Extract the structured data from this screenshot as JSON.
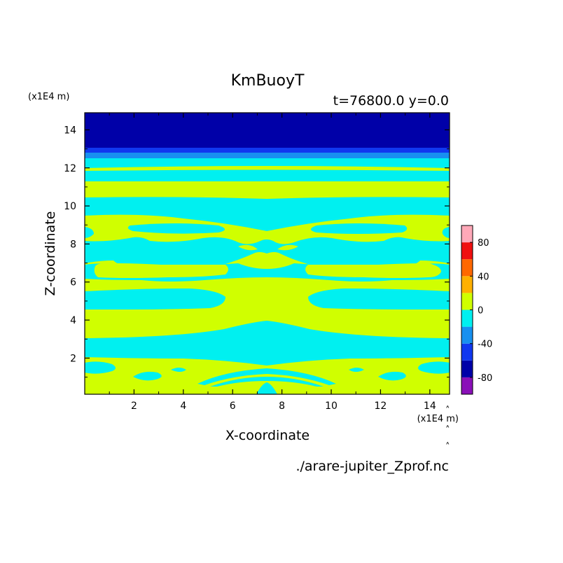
{
  "chart_data": {
    "type": "heatmap",
    "title": "KmBuoyT",
    "subtitle": "t=76800.0 y=0.0",
    "xlabel": "X-coordinate",
    "ylabel": "Z-coordinate",
    "x_unit": "(x1E4 m)",
    "y_unit": "(x1E4 m)",
    "xlim": [
      0,
      14.8
    ],
    "ylim": [
      0.1,
      14.9
    ],
    "x_ticks": [
      2,
      4,
      6,
      8,
      10,
      12,
      14
    ],
    "y_ticks": [
      2,
      4,
      6,
      8,
      10,
      12,
      14
    ],
    "colorbar": {
      "levels": [
        -100,
        -80,
        -60,
        -40,
        -20,
        0,
        20,
        40,
        60,
        80,
        100
      ],
      "colors": [
        "#8a10b8",
        "#0000a8",
        "#1038f0",
        "#1890f0",
        "#00f0f0",
        "#d0ff00",
        "#ffb000",
        "#ff6800",
        "#f01010",
        "#ffa8b8"
      ],
      "tick_labels": [
        "80",
        "40",
        "0",
        "-40",
        "-80"
      ],
      "tick_values": [
        80,
        40,
        0,
        -40,
        -80
      ]
    },
    "horizontal_bands": [
      {
        "z_from": 13.1,
        "z_to": 14.9,
        "range": "-100 to -80",
        "color": "#0000a8"
      },
      {
        "z_from": 12.8,
        "z_to": 13.1,
        "range": "-60 to -40",
        "color": "#1890f0"
      },
      {
        "z_from": 12.45,
        "z_to": 12.8,
        "range": "-40 to -20",
        "color": "#00f0f0"
      },
      {
        "z_from": 11.9,
        "z_to": 12.45,
        "range": "-20 to 0",
        "color": "#00f0f0"
      },
      {
        "z_from": 11.85,
        "z_to": 11.95,
        "range": "0 to 20",
        "color": "#d0ff00"
      },
      {
        "z_from": 11.25,
        "z_to": 11.85,
        "range": "-20 to 0",
        "color": "#00f0f0"
      },
      {
        "z_from": 10.5,
        "z_to": 11.25,
        "range": "0 to 20",
        "color": "#d0ff00"
      },
      {
        "z_from": 9.3,
        "z_to": 10.5,
        "range": "-20 to 0",
        "color": "#00f0f0"
      },
      {
        "z_from": 7.3,
        "z_to": 9.3,
        "range": "mixed",
        "color": "#d0ff00"
      },
      {
        "z_from": 5.2,
        "z_to": 7.3,
        "range": "mixed",
        "color": "#00f0f0"
      },
      {
        "z_from": 4.0,
        "z_to": 5.2,
        "range": "mixed",
        "color": "#00f0f0"
      },
      {
        "z_from": 3.0,
        "z_to": 4.0,
        "range": "0 to 20",
        "color": "#d0ff00"
      },
      {
        "z_from": 1.8,
        "z_to": 3.0,
        "range": "-20 to 0",
        "color": "#00f0f0"
      },
      {
        "z_from": 0.1,
        "z_to": 1.8,
        "range": "mixed",
        "color": "#d0ff00"
      }
    ]
  },
  "footer": {
    "filename": "./arare-jupiter_Zprof.nc"
  }
}
